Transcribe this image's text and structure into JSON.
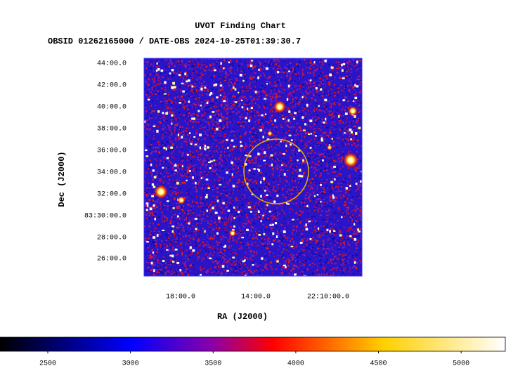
{
  "chart_data": {
    "type": "image",
    "title": "UVOT Finding Chart",
    "subtitle": "OBSID 01262165000 / DATE-OBS 2024-10-25T01:39:30.7",
    "xlabel": "RA (J2000)",
    "ylabel": "Dec (J2000)",
    "xtick_labels": [
      "18:00.0",
      "14:00.0",
      "22:10:00.0"
    ],
    "ytick_labels": [
      "44:00.0",
      "42:00.0",
      "40:00.0",
      "38:00.0",
      "36:00.0",
      "34:00.0",
      "32:00.0",
      "83:30:00.0",
      "28:00.0",
      "26:00.0"
    ],
    "colorbar": {
      "lim": [
        2211,
        5267
      ],
      "ticks": [
        2500,
        3000,
        3500,
        4000,
        4500,
        5000
      ]
    }
  }
}
